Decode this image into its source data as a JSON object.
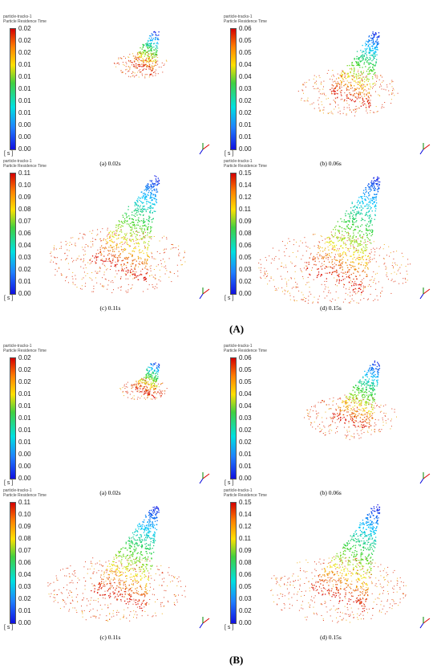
{
  "header": {
    "line1": "particle-tracks-1",
    "line2": "Particle Residence Time"
  },
  "unit": "[ s ]",
  "group_labels": {
    "A": "(A)",
    "B": "(B)"
  },
  "groups": [
    {
      "id": "A",
      "panels": [
        {
          "caption": "(a) 0.02s",
          "ticks": [
            "0.02",
            "0.02",
            "0.02",
            "0.01",
            "0.01",
            "0.01",
            "0.01",
            "0.01",
            "0.00",
            "0.00",
            "0.00"
          ],
          "scale": 0.35
        },
        {
          "caption": "(b) 0.06s",
          "ticks": [
            "0.06",
            "0.05",
            "0.05",
            "0.04",
            "0.04",
            "0.03",
            "0.02",
            "0.02",
            "0.01",
            "0.01",
            "0.00"
          ],
          "scale": 0.65
        },
        {
          "caption": "(c) 0.11s",
          "ticks": [
            "0.11",
            "0.10",
            "0.09",
            "0.08",
            "0.07",
            "0.06",
            "0.04",
            "0.03",
            "0.02",
            "0.01",
            "0.00"
          ],
          "scale": 0.9
        },
        {
          "caption": "(d) 0.15s",
          "ticks": [
            "0.15",
            "0.14",
            "0.12",
            "0.11",
            "0.09",
            "0.08",
            "0.06",
            "0.05",
            "0.03",
            "0.02",
            "0.00"
          ],
          "scale": 1.0
        }
      ]
    },
    {
      "id": "B",
      "panels": [
        {
          "caption": "(a) 0.02s",
          "ticks": [
            "0.02",
            "0.02",
            "0.02",
            "0.01",
            "0.01",
            "0.01",
            "0.01",
            "0.01",
            "0.00",
            "0.00",
            "0.00"
          ],
          "scale": 0.3
        },
        {
          "caption": "(b) 0.06s",
          "ticks": [
            "0.06",
            "0.05",
            "0.05",
            "0.04",
            "0.04",
            "0.03",
            "0.02",
            "0.02",
            "0.01",
            "0.01",
            "0.00"
          ],
          "scale": 0.6
        },
        {
          "caption": "(c) 0.11s",
          "ticks": [
            "0.11",
            "0.10",
            "0.09",
            "0.08",
            "0.07",
            "0.06",
            "0.04",
            "0.03",
            "0.02",
            "0.01",
            "0.00"
          ],
          "scale": 0.9
        },
        {
          "caption": "(d) 0.15s",
          "ticks": [
            "0.15",
            "0.14",
            "0.12",
            "0.11",
            "0.09",
            "0.08",
            "0.06",
            "0.05",
            "0.03",
            "0.02",
            "0.00"
          ],
          "scale": 0.9
        }
      ]
    }
  ],
  "colors": {
    "bar_top": "#d40000",
    "bar_bottom": "#1010e0"
  }
}
